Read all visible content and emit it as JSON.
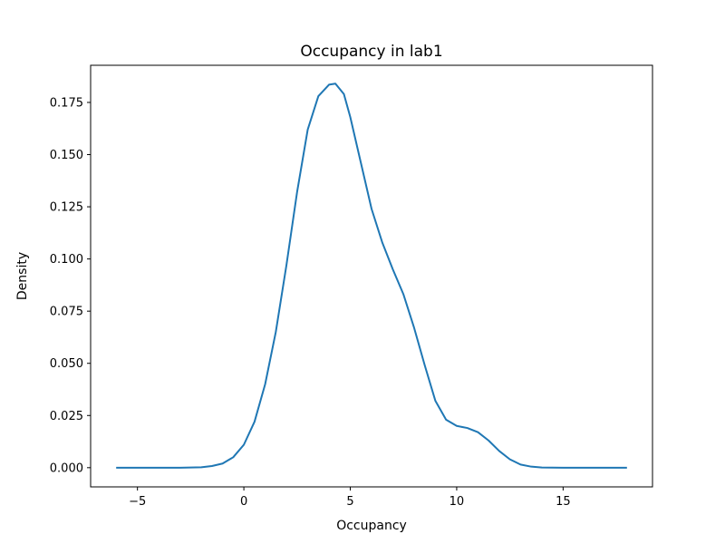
{
  "chart_data": {
    "type": "line",
    "title": "Occupancy in lab1",
    "xlabel": "Occupancy",
    "ylabel": "Density",
    "xlim": [
      -7.2,
      19.2
    ],
    "ylim": [
      -0.0092,
      0.1928
    ],
    "xticks": [
      -5,
      0,
      5,
      10,
      15
    ],
    "xtick_labels": [
      "−5",
      "0",
      "5",
      "10",
      "15"
    ],
    "yticks": [
      0,
      0.025,
      0.05,
      0.075,
      0.1,
      0.125,
      0.15,
      0.175
    ],
    "ytick_labels": [
      "0.000",
      "0.025",
      "0.050",
      "0.075",
      "0.100",
      "0.125",
      "0.150",
      "0.175"
    ],
    "grid": false,
    "legend": false,
    "series": [
      {
        "color": "#1f77b4",
        "x": [
          -6.0,
          -3.0,
          -2.0,
          -1.5,
          -1.0,
          -0.5,
          0.0,
          0.5,
          1.0,
          1.5,
          2.0,
          2.5,
          3.0,
          3.5,
          4.0,
          4.3,
          4.7,
          5.0,
          5.5,
          6.0,
          6.5,
          7.0,
          7.5,
          8.0,
          8.5,
          9.0,
          9.5,
          10.0,
          10.5,
          11.0,
          11.5,
          12.0,
          12.5,
          13.0,
          13.5,
          14.0,
          15.0,
          18.0
        ],
        "y": [
          0.0,
          0.0,
          0.0002,
          0.0008,
          0.002,
          0.005,
          0.011,
          0.022,
          0.04,
          0.065,
          0.097,
          0.132,
          0.162,
          0.178,
          0.1835,
          0.184,
          0.179,
          0.168,
          0.146,
          0.124,
          0.108,
          0.095,
          0.083,
          0.067,
          0.049,
          0.032,
          0.023,
          0.02,
          0.019,
          0.017,
          0.013,
          0.008,
          0.004,
          0.0015,
          0.0005,
          0.0001,
          0.0,
          0.0
        ]
      }
    ]
  }
}
